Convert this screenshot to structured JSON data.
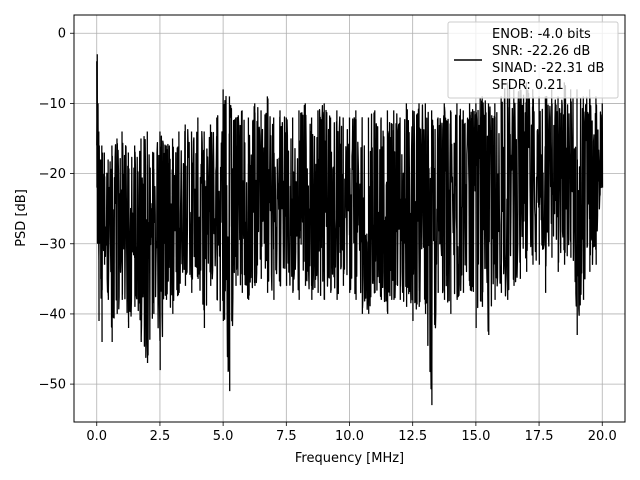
{
  "chart_data": {
    "type": "line",
    "xlabel": "Frequency [MHz]",
    "ylabel": "PSD [dB]",
    "xlim": [
      -0.9,
      20.9
    ],
    "ylim": [
      -55.4,
      2.6
    ],
    "xticks": [
      0.0,
      2.5,
      5.0,
      7.5,
      10.0,
      12.5,
      15.0,
      17.5,
      20.0
    ],
    "xtick_labels": [
      "0.0",
      "2.5",
      "5.0",
      "7.5",
      "10.0",
      "12.5",
      "15.0",
      "17.5",
      "20.0"
    ],
    "yticks": [
      0,
      -10,
      -20,
      -30,
      -40,
      -50
    ],
    "ytick_labels": [
      "0",
      "−10",
      "−20",
      "−30",
      "−40",
      "−50"
    ],
    "grid": true,
    "legend_position": "top-right",
    "line_color": "#000000",
    "legend": {
      "entries": [
        "ENOB: -4.0 bits",
        "SNR: -22.26 dB",
        "SINAD: -22.31 dB",
        "SFDR: 0.21"
      ]
    },
    "series": [
      {
        "x": [
          0.0,
          0.02,
          0.05,
          0.08,
          0.1,
          0.15,
          0.2,
          0.3,
          0.45,
          0.6,
          0.8,
          1.0,
          1.25,
          1.5,
          1.75,
          2.0,
          2.25,
          2.5,
          2.75,
          3.0,
          3.25,
          3.5,
          3.75,
          4.0,
          4.25,
          4.5,
          4.75,
          5.0,
          5.25,
          5.5,
          5.75,
          6.0,
          6.25,
          6.5,
          6.75,
          7.0,
          7.25,
          7.5,
          7.75,
          8.0,
          8.25,
          8.5,
          8.75,
          9.0,
          9.25,
          9.5,
          9.75,
          10.0,
          10.25,
          10.5,
          10.75,
          11.0,
          11.25,
          11.5,
          11.75,
          12.0,
          12.25,
          12.5,
          12.75,
          13.0,
          13.25,
          13.5,
          13.75,
          14.0,
          14.25,
          14.5,
          14.75,
          15.0,
          15.25,
          15.5,
          15.75,
          16.0,
          16.25,
          16.5,
          16.75,
          17.0,
          17.25,
          17.5,
          17.75,
          18.0,
          18.25,
          18.5,
          18.75,
          19.0,
          19.25,
          19.5,
          19.75,
          20.0
        ],
        "upper": [
          -4,
          -3,
          -10,
          -14,
          -16,
          -18,
          -16,
          -17,
          -18,
          -16,
          -15,
          -14,
          -17,
          -16,
          -15,
          -14,
          -17,
          -14,
          -16,
          -15,
          -14,
          -13,
          -14,
          -12,
          -14,
          -13,
          -12,
          -8,
          -9,
          -12,
          -11,
          -12,
          -10,
          -11,
          -9,
          -12,
          -11,
          -12,
          -12,
          -11,
          -10,
          -12,
          -11,
          -10,
          -12,
          -11,
          -12,
          -12,
          -11,
          -12,
          -12,
          -11,
          -12,
          -11,
          -11,
          -12,
          -10,
          -11,
          -10,
          -10,
          -11,
          -12,
          -10,
          -11,
          -10,
          -11,
          -10,
          -10,
          -9,
          -10,
          -10,
          -9,
          -7,
          -8,
          -8,
          -7,
          -8,
          -9,
          -9,
          -8,
          -9,
          -7,
          -8,
          -8,
          -9,
          -8,
          -9,
          -10
        ],
        "lower": [
          -22,
          -30,
          -23,
          -41,
          -30,
          -35,
          -44,
          -33,
          -38,
          -44,
          -40,
          -38,
          -42,
          -39,
          -44,
          -47,
          -40,
          -48,
          -38,
          -40,
          -37,
          -36,
          -37,
          -35,
          -42,
          -36,
          -38,
          -41,
          -51,
          -36,
          -37,
          -38,
          -36,
          -35,
          -37,
          -38,
          -36,
          -36,
          -37,
          -38,
          -36,
          -38,
          -37,
          -38,
          -37,
          -38,
          -36,
          -37,
          -38,
          -40,
          -40,
          -37,
          -38,
          -40,
          -38,
          -38,
          -39,
          -41,
          -39,
          -40,
          -53,
          -37,
          -38,
          -40,
          -38,
          -37,
          -36,
          -42,
          -39,
          -43,
          -38,
          -37,
          -38,
          -36,
          -35,
          -34,
          -33,
          -33,
          -37,
          -32,
          -34,
          -33,
          -32,
          -43,
          -38,
          -34,
          -33,
          -22
        ]
      }
    ]
  }
}
